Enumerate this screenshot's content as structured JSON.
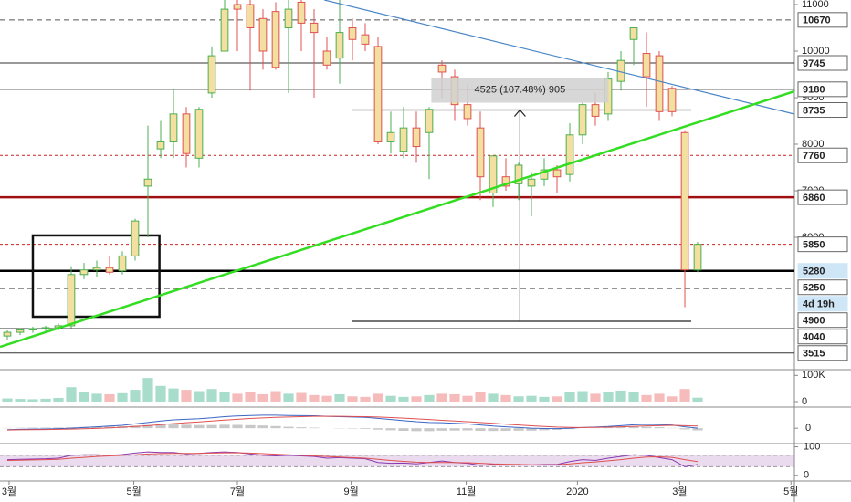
{
  "chart_data": {
    "type": "candlestick",
    "x": [
      0,
      1,
      2,
      3,
      4,
      5,
      6,
      7,
      8,
      9,
      10,
      11,
      12,
      13,
      14,
      15,
      16,
      17,
      18,
      19,
      20,
      21,
      22,
      23,
      24,
      25,
      26,
      27,
      28,
      29,
      30,
      31,
      32,
      33,
      34,
      35,
      36,
      37,
      38,
      39,
      40,
      41,
      42,
      43,
      44,
      45,
      46,
      47,
      48,
      49,
      50,
      51,
      52,
      53,
      54
    ],
    "xlim": [
      -0.57,
      61.57
    ],
    "xticks": [
      {
        "value": 0.14,
        "label": "3월"
      },
      {
        "value": 9.9,
        "label": "5월"
      },
      {
        "value": 18,
        "label": "7월"
      },
      {
        "value": 26.9,
        "label": "9월"
      },
      {
        "value": 35.9,
        "label": "11월"
      },
      {
        "value": 44.6,
        "label": "2020"
      },
      {
        "value": 52.6,
        "label": "3월"
      },
      {
        "value": 61.3,
        "label": "5월"
      }
    ],
    "open": [
      3880,
      3960,
      4010,
      4040,
      4060,
      4100,
      5200,
      5300,
      5350,
      5280,
      5600,
      7100,
      7900,
      8050,
      8650,
      7700,
      9100,
      10000,
      11000,
      11000,
      10700,
      10850,
      10500,
      11050,
      10600,
      10000,
      9850,
      10500,
      10350,
      10100,
      8050,
      7850,
      8350,
      8250,
      9700,
      9450,
      8850,
      8350,
      6950,
      7300,
      7150,
      7100,
      7250,
      7450,
      7350,
      8200,
      8850,
      8650,
      9350,
      10250,
      9950,
      9900,
      9200,
      8250,
      5300
    ],
    "high": [
      4000,
      4050,
      4080,
      4100,
      4150,
      5380,
      5450,
      5500,
      5600,
      5700,
      6400,
      8400,
      8500,
      9200,
      8800,
      8800,
      10100,
      11100,
      11100,
      11100,
      10900,
      11050,
      11100,
      11100,
      10900,
      10300,
      11100,
      10700,
      10600,
      10300,
      8700,
      8800,
      8700,
      8800,
      9800,
      9600,
      9300,
      8700,
      7750,
      7700,
      7600,
      7400,
      7700,
      7550,
      8450,
      8900,
      9100,
      9550,
      10000,
      10500,
      10400,
      10000,
      9250,
      8300,
      5900
    ],
    "low": [
      3800,
      3900,
      3950,
      3980,
      4000,
      4050,
      5100,
      5150,
      5200,
      5200,
      5500,
      6000,
      7700,
      7700,
      7500,
      7500,
      9000,
      10000,
      10000,
      9150,
      9600,
      9600,
      9100,
      10000,
      9000,
      9600,
      9300,
      9800,
      10000,
      8000,
      7800,
      7700,
      7600,
      7250,
      9000,
      8500,
      8400,
      6800,
      6650,
      7000,
      6800,
      6450,
      7100,
      6950,
      7200,
      8000,
      8400,
      8500,
      9150,
      9700,
      8800,
      8500,
      8600,
      4500,
      5250
    ],
    "close": [
      3960,
      4010,
      4040,
      4060,
      4100,
      5200,
      5300,
      5350,
      5250,
      5600,
      6350,
      7250,
      8050,
      8650,
      7800,
      8750,
      9900,
      10900,
      10900,
      10500,
      10000,
      9650,
      10900,
      10600,
      10400,
      9700,
      10400,
      10250,
      10150,
      8050,
      8250,
      8350,
      7950,
      8750,
      9550,
      8850,
      8550,
      7300,
      7750,
      7100,
      7550,
      7250,
      7450,
      7300,
      8200,
      8850,
      8600,
      9400,
      9800,
      10500,
      9450,
      8700,
      8700,
      5300,
      5850
    ],
    "colors": {
      "up": "#4caf50",
      "down": "#e05050",
      "body": "#f3e0a0"
    },
    "ylim": [
      3255,
      11098
    ],
    "yticks": [
      6000,
      7000,
      8000,
      9000,
      10000,
      11000
    ],
    "levels": [
      {
        "value": 10670,
        "label": "10670",
        "style": "dashed",
        "color": "#555555",
        "box": "#ffffff"
      },
      {
        "value": 9745,
        "label": "9745",
        "style": "solid",
        "color": "#333333",
        "box": "#ffffff"
      },
      {
        "value": 9180,
        "label": "9180",
        "style": "solid",
        "color": "#333333",
        "box": "#ffffff"
      },
      {
        "value": 8735,
        "label": "8735",
        "style": "dotted",
        "color": "#cc2222",
        "box": "#ffffff"
      },
      {
        "value": 7760,
        "label": "7760",
        "style": "dotted",
        "color": "#cc2222",
        "box": "#ffffff"
      },
      {
        "value": 6860,
        "label": "6860",
        "style": "thick",
        "color": "#a01010",
        "box": "#ffffff"
      },
      {
        "value": 5850,
        "label": "5850",
        "style": "dotted",
        "color": "#cc2222",
        "box": "#ffffff"
      },
      {
        "value": 5280,
        "label": "5280",
        "style": "thick",
        "color": "#000000",
        "box": "#cfe6f7"
      },
      {
        "value": 5250,
        "label": "5250",
        "style": "none",
        "color": "#000000",
        "box": "#ffffff"
      },
      {
        "value": 4900,
        "label": "4900",
        "style": "dashed",
        "color": "#555555",
        "box": "#ffffff"
      },
      {
        "value": 4040,
        "label": "4040",
        "style": "solid",
        "color": "#333333",
        "box": "#ffffff"
      },
      {
        "value": 3515,
        "label": "3515",
        "style": "solid",
        "color": "#333333",
        "box": "#ffffff"
      }
    ],
    "countdown": "4d 19h",
    "trendlines": [
      {
        "color": "#4a86c8",
        "x": [
          24.8,
          61.57
        ],
        "y": [
          11098,
          8647
        ]
      },
      {
        "color": "#33dd22",
        "x": [
          -0.57,
          61.57
        ],
        "y": [
          3647,
          9137
        ]
      }
    ],
    "box": {
      "x": [
        2,
        11.9
      ],
      "y": [
        6040,
        4294
      ]
    },
    "measure": {
      "x": 40.1,
      "x_range": [
        27,
        53.5
      ],
      "y": [
        4196,
        8735
      ],
      "label": "4525 (107.48%) 905"
    },
    "volume": {
      "ylim": [
        0,
        115000
      ],
      "yticks": [
        0,
        {
          "value": 100000,
          "label": "100K"
        }
      ],
      "colors": {
        "up": "#a8dccb",
        "down": "#f6bcbc"
      },
      "values": [
        12000,
        10000,
        9000,
        11000,
        14000,
        55000,
        35000,
        30000,
        28000,
        32000,
        45000,
        90000,
        60000,
        50000,
        45000,
        40000,
        48000,
        38000,
        30000,
        35000,
        28000,
        40000,
        30000,
        33000,
        25000,
        22000,
        28000,
        20000,
        18000,
        30000,
        22000,
        18000,
        20000,
        25000,
        30000,
        28000,
        22000,
        35000,
        30000,
        25000,
        20000,
        22000,
        18000,
        20000,
        35000,
        40000,
        30000,
        35000,
        42000,
        38000,
        25000,
        30000,
        20000,
        48000,
        15000
      ]
    },
    "macd": {
      "ylim": [
        -1,
        1.4
      ],
      "yticks": [
        0
      ],
      "series": [
        {
          "color": "#3a66c4",
          "values": [
            -0.1,
            -0.08,
            -0.06,
            -0.05,
            -0.03,
            0,
            0.05,
            0.1,
            0.15,
            0.2,
            0.3,
            0.4,
            0.5,
            0.58,
            0.62,
            0.66,
            0.72,
            0.8,
            0.85,
            0.88,
            0.9,
            0.9,
            0.88,
            0.87,
            0.86,
            0.82,
            0.8,
            0.78,
            0.75,
            0.68,
            0.6,
            0.52,
            0.45,
            0.4,
            0.38,
            0.34,
            0.3,
            0.22,
            0.15,
            0.1,
            0.05,
            0.0,
            -0.02,
            -0.03,
            0.0,
            0.05,
            0.08,
            0.12,
            0.18,
            0.24,
            0.26,
            0.25,
            0.22,
            0.1,
            0.0
          ]
        },
        {
          "color": "#e05050",
          "values": [
            -0.12,
            -0.11,
            -0.1,
            -0.09,
            -0.08,
            -0.06,
            -0.04,
            -0.01,
            0.03,
            0.07,
            0.12,
            0.18,
            0.25,
            0.32,
            0.38,
            0.44,
            0.5,
            0.56,
            0.62,
            0.67,
            0.71,
            0.75,
            0.78,
            0.8,
            0.82,
            0.82,
            0.82,
            0.81,
            0.8,
            0.78,
            0.74,
            0.7,
            0.65,
            0.6,
            0.55,
            0.5,
            0.45,
            0.4,
            0.34,
            0.28,
            0.22,
            0.17,
            0.12,
            0.08,
            0.06,
            0.05,
            0.06,
            0.07,
            0.1,
            0.13,
            0.16,
            0.18,
            0.2,
            0.18,
            0.15
          ]
        }
      ],
      "histogram": {
        "color": "#c8c8c8",
        "values": [
          0.02,
          0.03,
          0.04,
          0.04,
          0.05,
          0.06,
          0.09,
          0.11,
          0.12,
          0.13,
          0.18,
          0.22,
          0.25,
          0.26,
          0.24,
          0.22,
          0.22,
          0.24,
          0.23,
          0.21,
          0.19,
          0.15,
          0.1,
          0.07,
          0.04,
          0,
          -0.02,
          -0.03,
          -0.05,
          -0.1,
          -0.14,
          -0.18,
          -0.2,
          -0.2,
          -0.17,
          -0.16,
          -0.15,
          -0.18,
          -0.19,
          -0.18,
          -0.17,
          -0.17,
          -0.14,
          -0.11,
          -0.06,
          0,
          0.02,
          0.05,
          0.08,
          0.11,
          0.1,
          0.07,
          0.02,
          -0.08,
          -0.15
        ]
      }
    },
    "rsi": {
      "ylim": [
        -20,
        105
      ],
      "yticks": [
        0,
        100
      ],
      "band": [
        30,
        70
      ],
      "band_color": "#b070c0",
      "series": [
        {
          "color": "#8a3ab0",
          "values": [
            55,
            56,
            57,
            58,
            60,
            70,
            72,
            72,
            70,
            73,
            78,
            82,
            80,
            80,
            75,
            77,
            80,
            82,
            80,
            75,
            70,
            68,
            70,
            68,
            66,
            60,
            62,
            60,
            58,
            45,
            42,
            43,
            40,
            45,
            50,
            45,
            42,
            35,
            38,
            36,
            38,
            36,
            38,
            38,
            48,
            55,
            52,
            60,
            66,
            72,
            70,
            62,
            55,
            30,
            38
          ]
        },
        {
          "color": "#e05050",
          "values": [
            52,
            53,
            54,
            55,
            56,
            60,
            63,
            66,
            68,
            70,
            72,
            75,
            76,
            77,
            77,
            77,
            78,
            79,
            79,
            78,
            76,
            74,
            72,
            70,
            68,
            66,
            64,
            62,
            60,
            56,
            52,
            49,
            46,
            45,
            45,
            45,
            44,
            42,
            40,
            39,
            38,
            37,
            37,
            37,
            40,
            44,
            47,
            51,
            55,
            60,
            64,
            65,
            63,
            55,
            48
          ]
        }
      ]
    }
  }
}
